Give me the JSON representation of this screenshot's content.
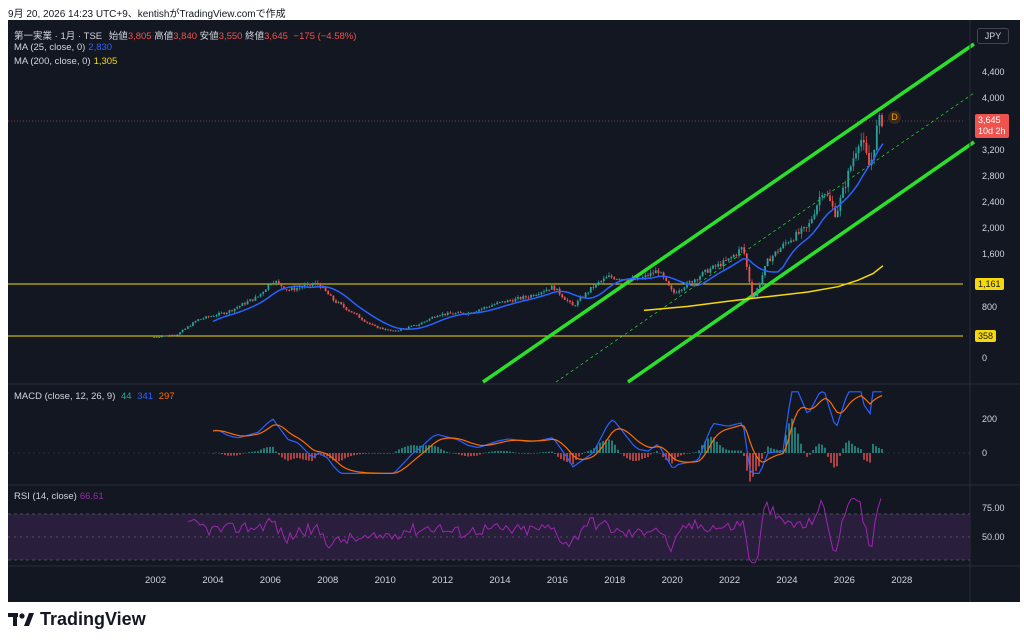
{
  "caption": "9月 20, 2026 14:23 UTC+9、kentishがTradingView.comで作成",
  "symbol": {
    "title": "第一実業 · 1月 · TSE",
    "open_label": "始値",
    "open": "3,805",
    "high_label": "高値",
    "high": "3,840",
    "low_label": "安値",
    "low": "3,550",
    "close_label": "終値",
    "close": "3,645",
    "change": "−175 (−4.58%)"
  },
  "ma25": {
    "label": "MA (25, close, 0)",
    "value": "2,830",
    "color": "#2962ff"
  },
  "ma200": {
    "label": "MA (200, close, 0)",
    "value": "1,305",
    "color": "#f5d90a"
  },
  "currency": "JPY",
  "price_axis": [
    "4,400",
    "4,000",
    "3,200",
    "2,800",
    "2,400",
    "2,000",
    "1,600",
    "800",
    "0"
  ],
  "price_tags": {
    "last": "3,645",
    "countdown": "10d 2h",
    "line1": "1,161",
    "line2": "358",
    "marker": "D"
  },
  "macd": {
    "label": "MACD (close, 12, 26, 9)",
    "hist": "44",
    "macd": "341",
    "signal": "297",
    "axis": [
      "200",
      "0"
    ]
  },
  "rsi": {
    "label": "RSI (14, close)",
    "value": "66.61",
    "axis": [
      "75.00",
      "50.00"
    ]
  },
  "time_axis": [
    "2002",
    "2004",
    "2006",
    "2008",
    "2010",
    "2012",
    "2014",
    "2016",
    "2018",
    "2020",
    "2022",
    "2024",
    "2026",
    "2028"
  ],
  "colors": {
    "up": "#26a69a",
    "down": "#ef5350",
    "channel": "#2be02b",
    "hline": "#f5d90a",
    "rsi": "#9c27b0",
    "macd": "#2962ff",
    "signal": "#ff6d00"
  },
  "brand": "TradingView"
}
